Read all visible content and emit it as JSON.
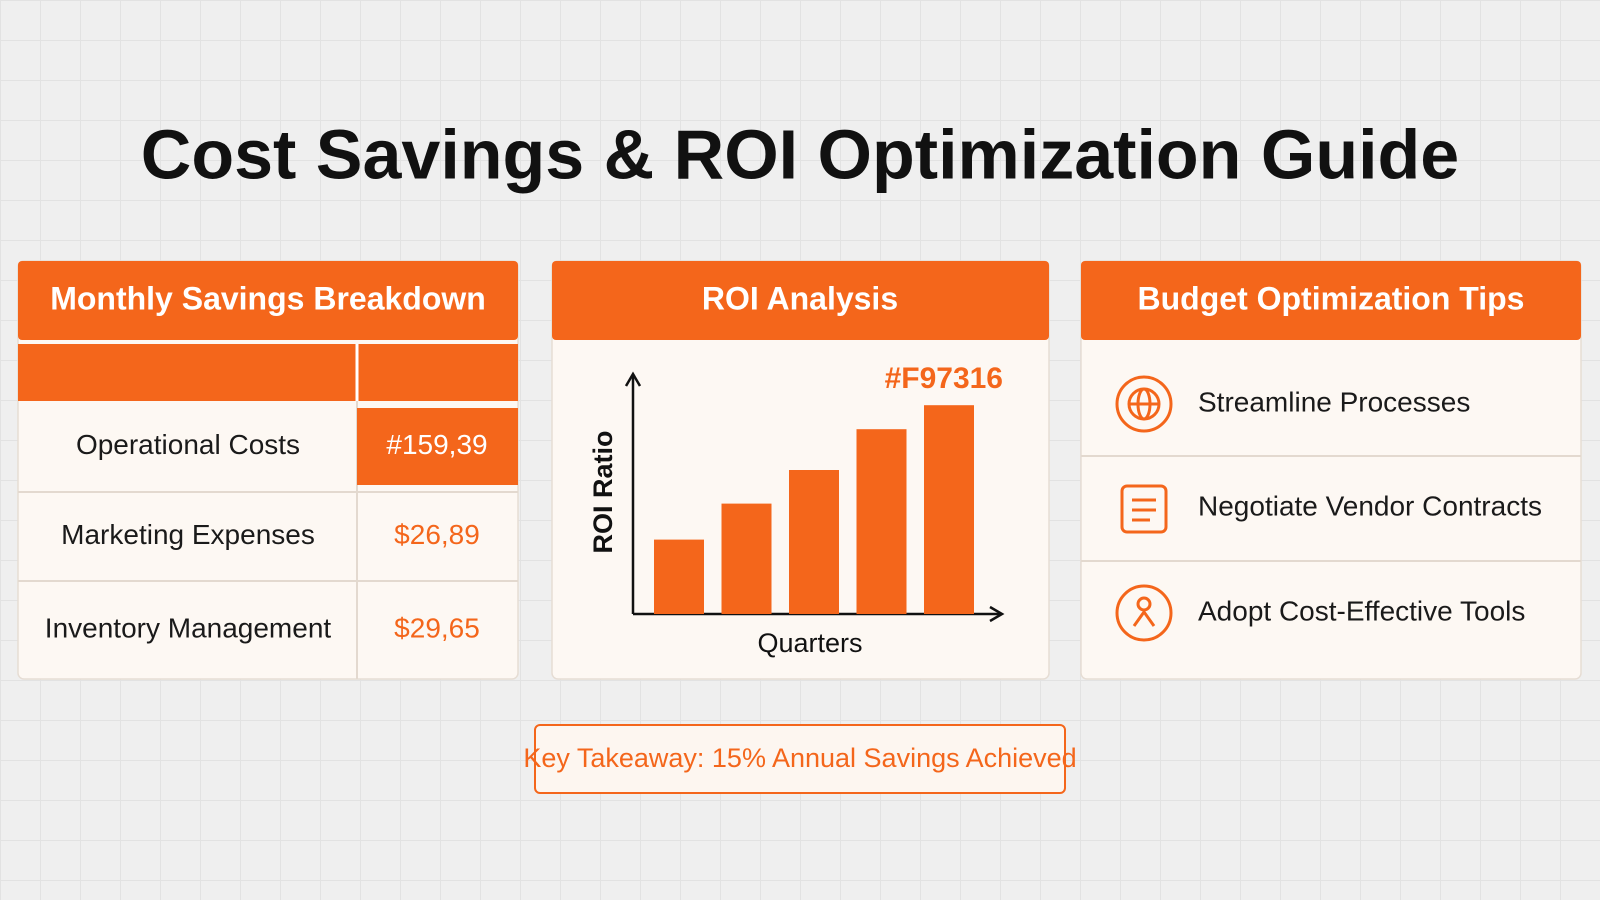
{
  "title": "Cost Savings & ROI Optimization Guide",
  "table": {
    "title": "Monthly Savings Breakdown",
    "rows": [
      [
        "Operational Costs",
        "#159,39"
      ],
      [
        "Marketing Expenses",
        "$26,89"
      ],
      [
        "Inventory Management",
        "$29,65"
      ]
    ]
  },
  "chart_data": {
    "type": "bar",
    "title": "ROI Analysis",
    "xlabel": "Quarters",
    "ylabel": "ROI Ratio",
    "annotation": "#F97316",
    "values": [
      31,
      46,
      60,
      77,
      87
    ],
    "ylim": [
      0,
      100
    ],
    "color": "#f4661b"
  },
  "tips": {
    "title": "Budget Optimization Tips",
    "items": [
      "Streamline Processes",
      "Negotiate Vendor Contracts",
      "Adopt Cost-Effective Tools"
    ]
  },
  "takeaway": "Key Takeaway: 15% Annual Savings Achieved"
}
